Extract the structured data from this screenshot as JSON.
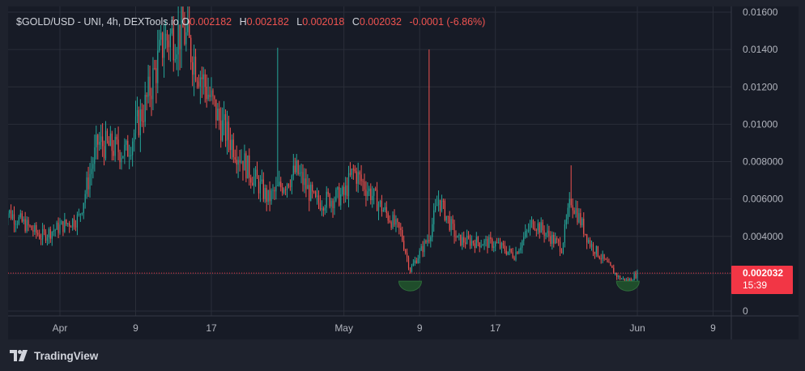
{
  "legend": {
    "symbol": "$GOLD/USD - UNI, 4h, DEXTools.io",
    "o_label": "O",
    "o_value": "0.002182",
    "h_label": "H",
    "h_value": "0.002182",
    "l_label": "L",
    "l_value": "0.002018",
    "c_label": "C",
    "c_value": "0.002032",
    "change": "-0.0001 (-6.86%)"
  },
  "price_badge": {
    "price": "0.002032",
    "countdown": "15:39"
  },
  "branding": {
    "name": "TradingView"
  },
  "colors": {
    "up": "#26a69a",
    "down": "#ef5350",
    "grid": "#2a2e39",
    "price_line": "#f23645",
    "marker": "#2e6b3a"
  },
  "chart_data": {
    "type": "candlestick",
    "title": "$GOLD/USD - UNI, 4h, DEXTools.io",
    "y_ticks": [
      "0.01600",
      "0.01400",
      "0.01200",
      "0.01000",
      "0.008000",
      "0.006000",
      "0.004000",
      "0.002000",
      "0"
    ],
    "y_tick_values": [
      0.016,
      0.014,
      0.012,
      0.01,
      0.008,
      0.006,
      0.004,
      0.002,
      0
    ],
    "x_ticks": [
      "Apr",
      "9",
      "17",
      "May",
      "9",
      "17",
      "Jun",
      "9"
    ],
    "x_tick_dates": [
      "2024-04-01",
      "2024-04-09",
      "2024-04-17",
      "2024-05-01",
      "2024-05-09",
      "2024-05-17",
      "2024-06-01",
      "2024-06-09"
    ],
    "ylim": [
      0,
      0.016
    ],
    "current_price": 0.002032,
    "grid": true,
    "markers": [
      {
        "date": "2024-05-08",
        "price": 0.00125,
        "shape": "half-circle"
      },
      {
        "date": "2024-05-31",
        "price": 0.00125,
        "shape": "half-circle"
      }
    ],
    "series_outline": [
      {
        "date": "2024-03-26",
        "price": 0.0055
      },
      {
        "date": "2024-03-30",
        "price": 0.004
      },
      {
        "date": "2024-04-03",
        "price": 0.005
      },
      {
        "date": "2024-04-05",
        "price": 0.009
      },
      {
        "date": "2024-04-08",
        "price": 0.0085
      },
      {
        "date": "2024-04-10",
        "price": 0.011
      },
      {
        "date": "2024-04-12",
        "price": 0.0145
      },
      {
        "date": "2024-04-14",
        "price": 0.015
      },
      {
        "date": "2024-04-16",
        "price": 0.0125
      },
      {
        "date": "2024-04-18",
        "price": 0.01
      },
      {
        "date": "2024-04-21",
        "price": 0.0075
      },
      {
        "date": "2024-04-23",
        "price": 0.006
      },
      {
        "date": "2024-04-26",
        "price": 0.0075
      },
      {
        "date": "2024-04-28",
        "price": 0.0058
      },
      {
        "date": "2024-05-01",
        "price": 0.0062
      },
      {
        "date": "2024-05-02",
        "price": 0.0075
      },
      {
        "date": "2024-05-04",
        "price": 0.0062
      },
      {
        "date": "2024-05-07",
        "price": 0.0042
      },
      {
        "date": "2024-05-08",
        "price": 0.0022
      },
      {
        "date": "2024-05-10",
        "price": 0.004
      },
      {
        "date": "2024-05-11",
        "price": 0.006
      },
      {
        "date": "2024-05-13",
        "price": 0.0038
      },
      {
        "date": "2024-05-17",
        "price": 0.0036
      },
      {
        "date": "2024-05-19",
        "price": 0.003
      },
      {
        "date": "2024-05-21",
        "price": 0.0048
      },
      {
        "date": "2024-05-24",
        "price": 0.0034
      },
      {
        "date": "2024-05-25",
        "price": 0.006
      },
      {
        "date": "2024-05-27",
        "price": 0.0036
      },
      {
        "date": "2024-05-30",
        "price": 0.0018
      },
      {
        "date": "2024-05-31",
        "price": 0.0016
      },
      {
        "date": "2024-06-01",
        "price": 0.002
      }
    ],
    "spikes": [
      {
        "date": "2024-04-24",
        "high": 0.0141
      },
      {
        "date": "2024-05-10",
        "high": 0.014
      },
      {
        "date": "2024-05-25",
        "high": 0.0078
      }
    ]
  }
}
